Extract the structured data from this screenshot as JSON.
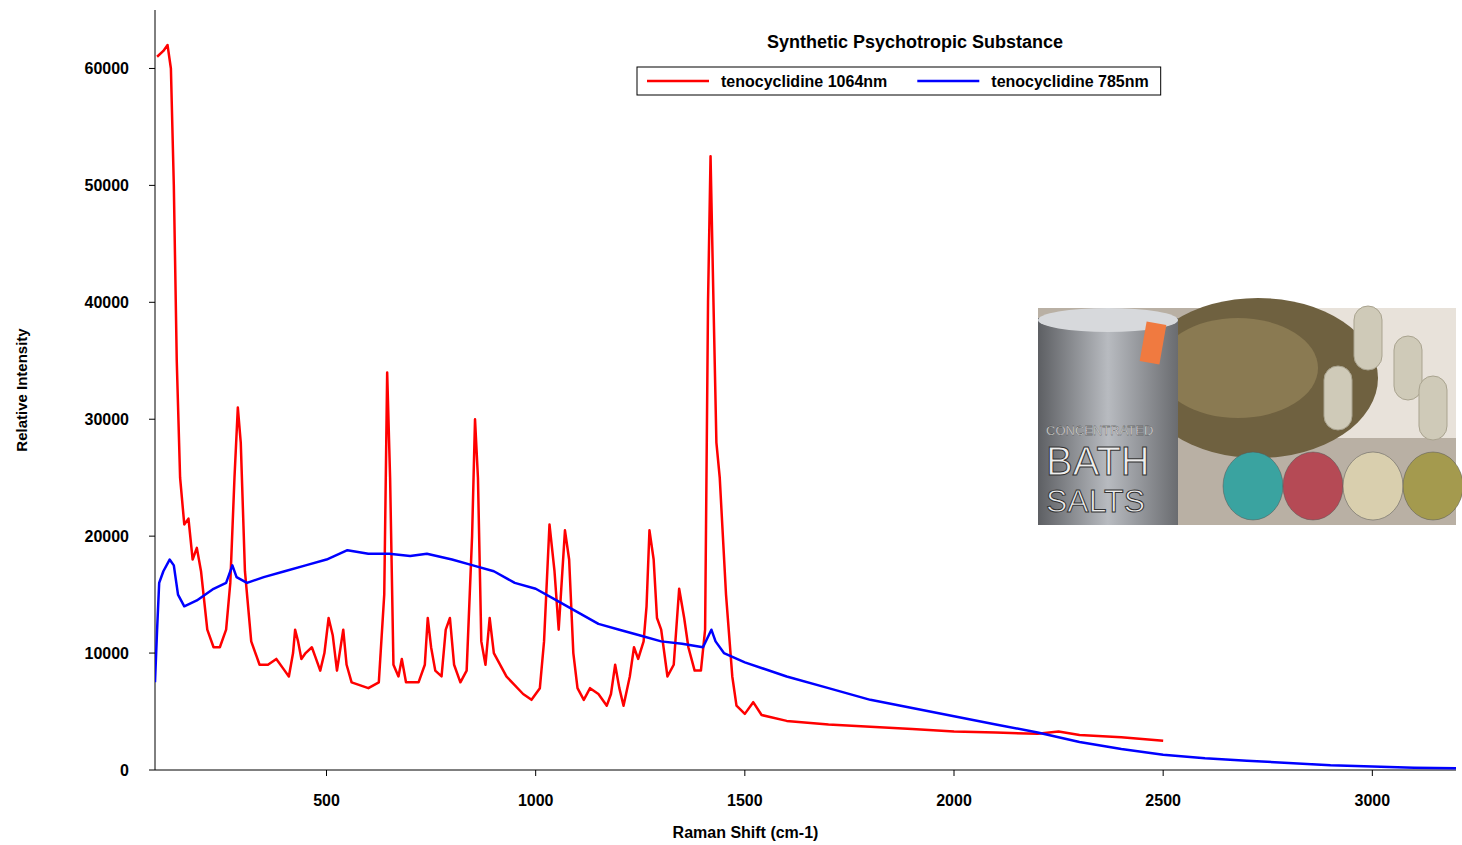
{
  "chart_data": {
    "type": "line",
    "title": "Synthetic Psychotropic Substance",
    "x_label": "Raman Shift (cm-1)",
    "y_label": "Relative Intensity",
    "annotations": [
      "CONCENTRATED",
      "BATH",
      "SALTS"
    ],
    "xlim": [
      90,
      3200
    ],
    "ylim": [
      0,
      65000
    ],
    "xticks": [
      500,
      1000,
      1500,
      2000,
      2500,
      3000
    ],
    "yticks": [
      0,
      10000,
      20000,
      30000,
      40000,
      50000,
      60000
    ],
    "legend": "top",
    "grid": false,
    "series": [
      {
        "name": "tenocyclidine 1064nm",
        "color": "#ff0000",
        "x": [
          95,
          110,
          120,
          128,
          135,
          142,
          150,
          160,
          170,
          180,
          190,
          200,
          215,
          230,
          245,
          260,
          270,
          280,
          288,
          295,
          305,
          320,
          340,
          360,
          380,
          400,
          410,
          420,
          425,
          432,
          440,
          450,
          465,
          475,
          485,
          495,
          505,
          515,
          525,
          540,
          548,
          560,
          600,
          625,
          638,
          645,
          652,
          660,
          672,
          680,
          690,
          720,
          735,
          742,
          750,
          760,
          775,
          785,
          795,
          805,
          820,
          835,
          848,
          855,
          862,
          870,
          880,
          890,
          900,
          930,
          970,
          990,
          1010,
          1020,
          1033,
          1045,
          1055,
          1070,
          1080,
          1090,
          1100,
          1115,
          1130,
          1150,
          1170,
          1180,
          1190,
          1200,
          1210,
          1225,
          1235,
          1245,
          1258,
          1265,
          1272,
          1282,
          1290,
          1300,
          1315,
          1330,
          1343,
          1355,
          1365,
          1380,
          1395,
          1405,
          1412,
          1418,
          1425,
          1432,
          1440,
          1455,
          1470,
          1480,
          1500,
          1520,
          1540,
          1600,
          1700,
          1800,
          1900,
          2000,
          2100,
          2200,
          2250,
          2300,
          2400,
          2500
        ],
        "values": [
          61000,
          61500,
          62000,
          60000,
          50000,
          35000,
          25000,
          21000,
          21500,
          18000,
          19000,
          17000,
          12000,
          10500,
          10500,
          12000,
          16000,
          25000,
          31000,
          28000,
          17000,
          11000,
          9000,
          9000,
          9500,
          8500,
          8000,
          10000,
          12000,
          11000,
          9500,
          10000,
          10500,
          9500,
          8500,
          10000,
          13000,
          11500,
          8500,
          12000,
          9000,
          7500,
          7000,
          7500,
          15000,
          34000,
          25000,
          9000,
          8000,
          9500,
          7500,
          7500,
          9000,
          13000,
          10500,
          8500,
          8000,
          12000,
          13000,
          9000,
          7500,
          8500,
          20000,
          30000,
          25000,
          11000,
          9000,
          13000,
          10000,
          8000,
          6500,
          6000,
          7000,
          11000,
          21000,
          17000,
          12000,
          20500,
          18000,
          10000,
          7000,
          6000,
          7000,
          6500,
          5500,
          6500,
          9000,
          7000,
          5500,
          8000,
          10500,
          9500,
          11000,
          14000,
          20500,
          18000,
          13000,
          12000,
          8000,
          9000,
          15500,
          13000,
          10500,
          8500,
          8500,
          12000,
          40000,
          52500,
          40000,
          28000,
          25000,
          15000,
          8000,
          5500,
          4800,
          5800,
          4700,
          4200,
          3900,
          3700,
          3500,
          3300,
          3200,
          3100,
          3300,
          3000,
          2800,
          2500
        ]
      },
      {
        "name": "tenocyclidine 785nm",
        "color": "#0000ff",
        "x": [
          90,
          95,
          100,
          110,
          125,
          135,
          145,
          160,
          190,
          230,
          260,
          275,
          285,
          310,
          350,
          400,
          450,
          500,
          550,
          600,
          650,
          700,
          740,
          800,
          850,
          900,
          950,
          1000,
          1050,
          1100,
          1150,
          1200,
          1250,
          1300,
          1350,
          1400,
          1420,
          1430,
          1450,
          1500,
          1600,
          1700,
          1800,
          1900,
          2000,
          2100,
          2200,
          2300,
          2400,
          2500,
          2600,
          2700,
          2800,
          2900,
          3000,
          3100,
          3200
        ],
        "values": [
          7500,
          12000,
          16000,
          17000,
          18000,
          17500,
          15000,
          14000,
          14500,
          15500,
          16000,
          17500,
          16500,
          16000,
          16500,
          17000,
          17500,
          18000,
          18800,
          18500,
          18500,
          18300,
          18500,
          18000,
          17500,
          17000,
          16000,
          15500,
          14500,
          13500,
          12500,
          12000,
          11500,
          11000,
          10800,
          10500,
          12000,
          11000,
          10000,
          9200,
          8000,
          7000,
          6000,
          5300,
          4600,
          3900,
          3200,
          2400,
          1800,
          1300,
          1000,
          800,
          600,
          400,
          300,
          200,
          150
        ]
      }
    ]
  }
}
